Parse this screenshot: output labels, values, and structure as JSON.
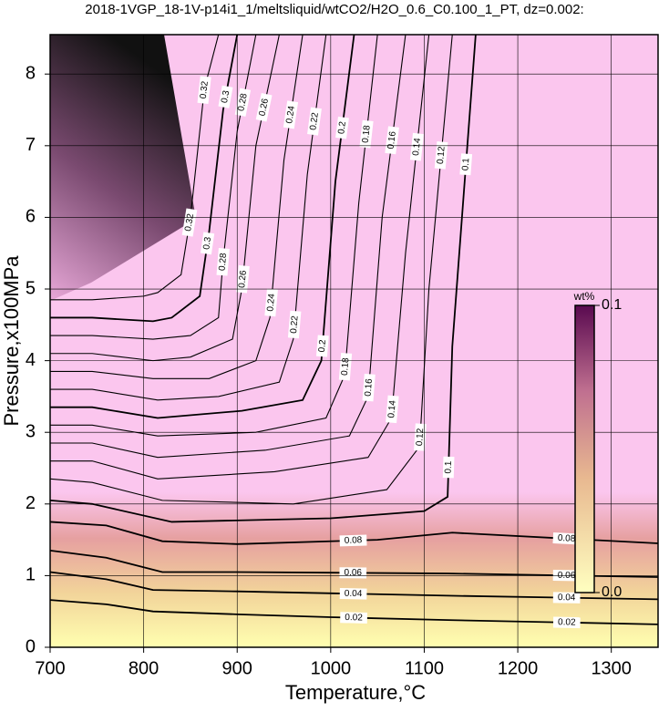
{
  "chart_data": {
    "type": "contour",
    "title": "2018-1VGP_18-1V-p14i1_1/meltsliquid/wtCO2/H2O_0.6_C0.100_1_PT, dz=0.002:",
    "x_label": "Temperature,°C",
    "y_label": "Pressure,x100MPa",
    "xlim": [
      700,
      1350
    ],
    "ylim": [
      0,
      8.55
    ],
    "xticks": [
      700,
      800,
      900,
      1000,
      1100,
      1200,
      1300
    ],
    "yticks": [
      0,
      1,
      2,
      3,
      4,
      5,
      6,
      7,
      8
    ],
    "grid": true,
    "contours": [
      {
        "level": 0.02,
        "x": [
          700,
          760,
          810,
          900,
          1000,
          1125,
          1350
        ],
        "y": [
          0.66,
          0.6,
          0.5,
          0.46,
          0.42,
          0.38,
          0.32
        ]
      },
      {
        "level": 0.04,
        "x": [
          700,
          760,
          810,
          900,
          1125,
          1350
        ],
        "y": [
          1.05,
          0.95,
          0.8,
          0.78,
          0.72,
          0.67
        ]
      },
      {
        "level": 0.06,
        "x": [
          700,
          760,
          820,
          900,
          1125,
          1350
        ],
        "y": [
          1.35,
          1.25,
          1.05,
          1.05,
          1.03,
          0.98
        ]
      },
      {
        "level": 0.08,
        "x": [
          700,
          760,
          820,
          900,
          1050,
          1130,
          1350
        ],
        "y": [
          1.75,
          1.7,
          1.48,
          1.44,
          1.5,
          1.6,
          1.45
        ]
      },
      {
        "level": 0.1,
        "x": [
          700,
          745,
          830,
          1000,
          1100,
          1125,
          1130,
          1155
        ],
        "y": [
          2.05,
          2.0,
          1.75,
          1.8,
          1.9,
          2.1,
          4.2,
          8.55
        ]
      },
      {
        "level": 0.12,
        "x": [
          700,
          745,
          820,
          960,
          1060,
          1095,
          1105,
          1130
        ],
        "y": [
          2.35,
          2.3,
          2.05,
          2.0,
          2.2,
          2.8,
          5.0,
          8.55
        ]
      },
      {
        "level": 0.14,
        "x": [
          700,
          745,
          815,
          940,
          1040,
          1065,
          1080,
          1105
        ],
        "y": [
          2.6,
          2.6,
          2.35,
          2.45,
          2.65,
          3.2,
          5.5,
          8.55
        ]
      },
      {
        "level": 0.16,
        "x": [
          700,
          745,
          815,
          930,
          1020,
          1040,
          1055,
          1080
        ],
        "y": [
          2.85,
          2.85,
          2.65,
          2.75,
          2.95,
          3.5,
          6.0,
          8.55
        ]
      },
      {
        "level": 0.18,
        "x": [
          700,
          745,
          815,
          920,
          995,
          1015,
          1030,
          1050
        ],
        "y": [
          3.1,
          3.1,
          2.95,
          3.0,
          3.2,
          3.8,
          6.2,
          8.55
        ]
      },
      {
        "level": 0.2,
        "x": [
          700,
          745,
          815,
          905,
          970,
          990,
          1005,
          1025
        ],
        "y": [
          3.35,
          3.35,
          3.2,
          3.3,
          3.45,
          4.0,
          6.5,
          8.55
        ]
      },
      {
        "level": 0.22,
        "x": [
          700,
          745,
          815,
          880,
          945,
          960,
          975,
          995
        ],
        "y": [
          3.6,
          3.6,
          3.45,
          3.5,
          3.7,
          4.3,
          6.6,
          8.55
        ]
      },
      {
        "level": 0.24,
        "x": [
          700,
          745,
          810,
          870,
          920,
          935,
          950,
          970
        ],
        "y": [
          3.85,
          3.85,
          3.75,
          3.75,
          4.0,
          4.6,
          6.8,
          8.55
        ]
      },
      {
        "level": 0.26,
        "x": [
          700,
          745,
          810,
          850,
          895,
          905,
          920,
          945
        ],
        "y": [
          4.1,
          4.1,
          4.0,
          4.05,
          4.3,
          5.0,
          7.0,
          8.55
        ]
      },
      {
        "level": 0.28,
        "x": [
          700,
          745,
          810,
          850,
          880,
          885,
          900,
          920
        ],
        "y": [
          4.35,
          4.35,
          4.3,
          4.35,
          4.6,
          5.4,
          7.2,
          8.55
        ]
      },
      {
        "level": 0.3,
        "x": [
          700,
          745,
          810,
          830,
          860,
          870,
          885,
          900
        ],
        "y": [
          4.6,
          4.6,
          4.55,
          4.6,
          4.9,
          5.8,
          7.5,
          8.55
        ]
      },
      {
        "level": 0.32,
        "x": [
          700,
          745,
          800,
          815,
          840,
          850,
          865,
          880
        ],
        "y": [
          4.85,
          4.85,
          4.9,
          4.95,
          5.2,
          6.0,
          7.8,
          8.55
        ]
      }
    ],
    "colorbar": {
      "label": "wt%",
      "ticks": [
        {
          "value": 0.1,
          "label": "0.1"
        },
        {
          "value": 0,
          "label": "0.0"
        }
      ],
      "range": [
        0,
        0.1
      ]
    }
  }
}
